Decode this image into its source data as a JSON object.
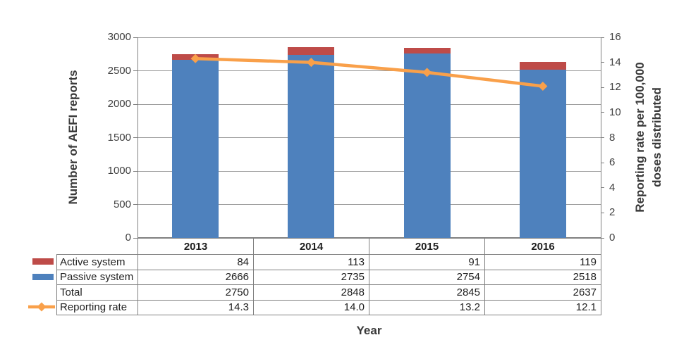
{
  "chart_data": {
    "type": "combo-stacked-bar-line",
    "categories": [
      "2013",
      "2014",
      "2015",
      "2016"
    ],
    "series": [
      {
        "name": "Passive system",
        "type": "bar",
        "stack_order": 1,
        "color": "#4E81BD",
        "values": [
          2666,
          2735,
          2754,
          2518
        ]
      },
      {
        "name": "Active system",
        "type": "bar",
        "stack_order": 2,
        "color": "#BE4B48",
        "values": [
          84,
          113,
          91,
          119
        ]
      },
      {
        "name": "Total",
        "type": "table-only",
        "values": [
          2750,
          2848,
          2845,
          2637
        ]
      },
      {
        "name": "Reporting rate",
        "type": "line",
        "color": "#F9A04A",
        "values": [
          14.3,
          14.0,
          13.2,
          12.1
        ]
      }
    ],
    "left_axis": {
      "label": "Number of AEFI reports",
      "min": 0,
      "max": 3000,
      "step": 500
    },
    "right_axis": {
      "label": "Reporting rate per 100,000 doses distributed",
      "label_lines": [
        "Reporting rate per 100,000",
        "doses distributed"
      ],
      "min": 0,
      "max": 16,
      "step": 2
    },
    "xlabel": "Year",
    "gridlines": true,
    "legend_position": "left-of-data-table"
  },
  "data_table": {
    "header": [
      "2013",
      "2014",
      "2015",
      "2016"
    ],
    "rows": [
      {
        "label": "Active system",
        "key": "bar",
        "color": "#BE4B48",
        "cells": [
          "84",
          "113",
          "91",
          "119"
        ]
      },
      {
        "label": "Passive system",
        "key": "bar",
        "color": "#4E81BD",
        "cells": [
          "2666",
          "2735",
          "2754",
          "2518"
        ]
      },
      {
        "label": "Total",
        "key": "none",
        "cells": [
          "2750",
          "2848",
          "2845",
          "2637"
        ]
      },
      {
        "label": "Reporting rate",
        "key": "line-marker",
        "color": "#F9A04A",
        "cells": [
          "14.3",
          "14.0",
          "13.2",
          "12.1"
        ]
      }
    ]
  },
  "colors": {
    "background": "#FFFFFF",
    "gridline": "#9D9D9D",
    "axis_line": "#808080",
    "table_border": "#808080",
    "tick_text": "#404040",
    "title_text": "#3A3A3A"
  }
}
